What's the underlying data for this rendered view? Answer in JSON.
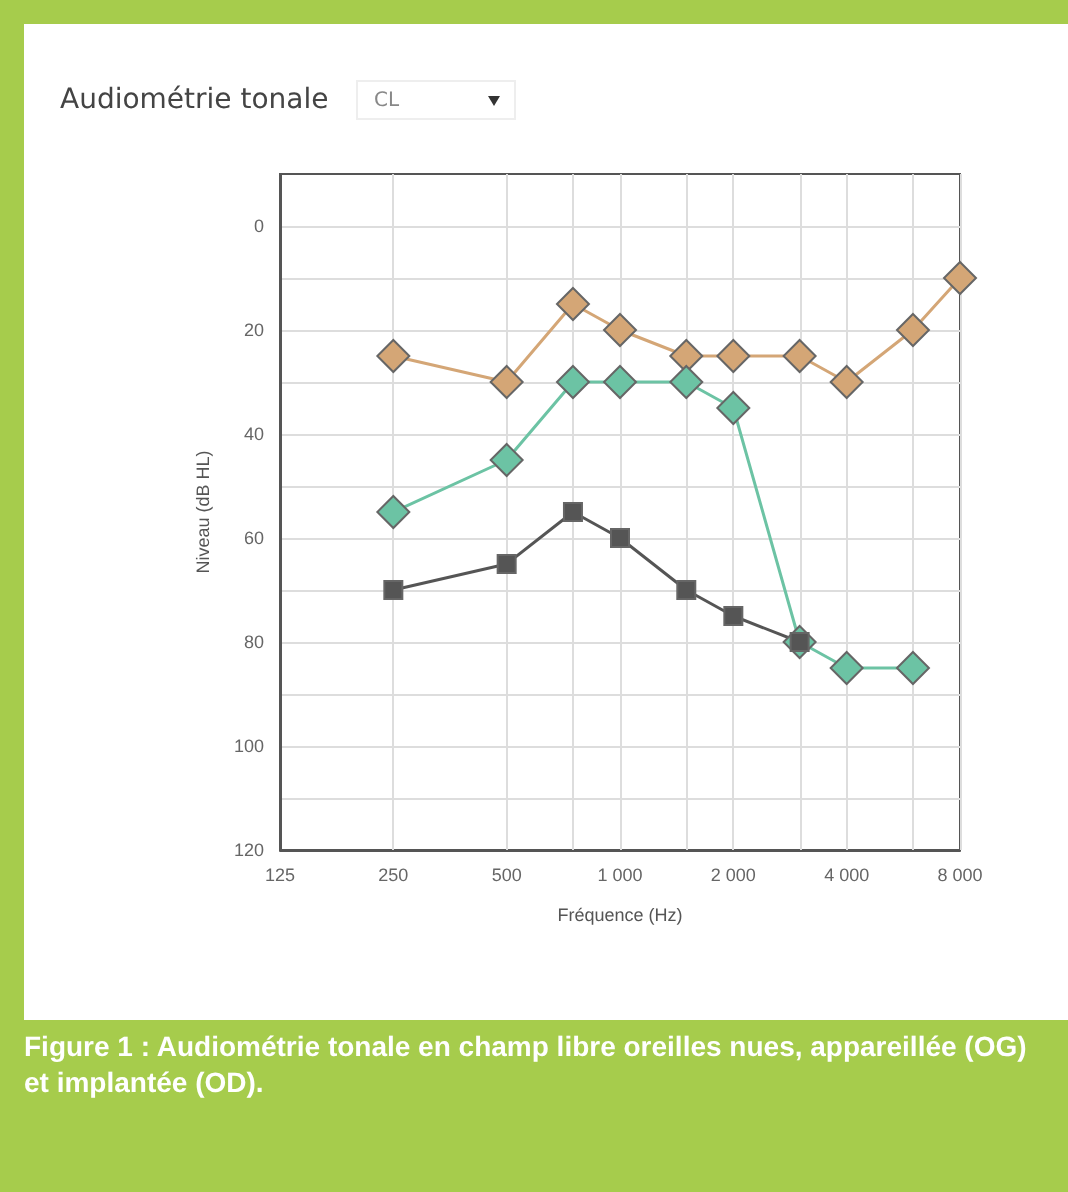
{
  "chart_data": {
    "type": "line",
    "title": "Audiométrie tonale",
    "xlabel": "Fréquence (Hz)",
    "ylabel": "Niveau (dB HL)",
    "annotations": [
      "CL",
      "Figure 1 : Audiométrie tonale en champ libre oreilles nues, appareillée (OG) et implantée (OD)."
    ],
    "log": "x",
    "grid": true,
    "line_style": "solid",
    "xlim": [
      125,
      8000
    ],
    "xticks": [
      125,
      250,
      500,
      {
        "value": 750,
        "label": null
      },
      {
        "value": 1000,
        "label": "1 000"
      },
      {
        "value": 1500,
        "label": null
      },
      {
        "value": 2000,
        "label": "2 000"
      },
      {
        "value": 3000,
        "label": null
      },
      {
        "value": 4000,
        "label": "4 000"
      },
      {
        "value": 6000,
        "label": null
      },
      {
        "value": 8000,
        "label": "8 000"
      }
    ],
    "ylim": [
      120,
      -10
    ],
    "yticks": [
      0,
      {
        "value": 10,
        "label": null
      },
      20,
      {
        "value": 30,
        "label": null
      },
      40,
      {
        "value": 50,
        "label": null
      },
      60,
      {
        "value": 70,
        "label": null
      },
      80,
      {
        "value": 90,
        "label": null
      },
      100,
      {
        "value": 110,
        "label": null
      },
      120
    ],
    "series": [
      {
        "color": "#d4a676",
        "marker": "diamond",
        "x": [
          250,
          500,
          750,
          1000,
          1500,
          2000,
          3000,
          4000,
          6000,
          8000
        ],
        "values": [
          25,
          30,
          15,
          20,
          25,
          25,
          25,
          30,
          20,
          10
        ]
      },
      {
        "color": "#6cc3a4",
        "marker": "diamond",
        "x": [
          250,
          500,
          750,
          1000,
          1500,
          2000,
          3000,
          4000,
          6000
        ],
        "values": [
          55,
          45,
          30,
          30,
          30,
          35,
          80,
          85,
          85
        ]
      },
      {
        "color": "#555555",
        "marker": "square",
        "x": [
          250,
          500,
          750,
          1000,
          1500,
          2000,
          3000
        ],
        "values": [
          70,
          65,
          55,
          60,
          70,
          75,
          80
        ]
      }
    ]
  }
}
